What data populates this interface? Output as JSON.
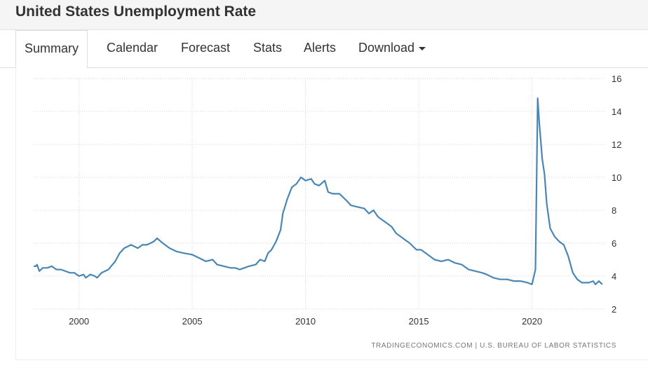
{
  "header": {
    "title": "United States Unemployment Rate"
  },
  "tabs": [
    {
      "label": "Summary",
      "active": true
    },
    {
      "label": "Calendar"
    },
    {
      "label": "Forecast"
    },
    {
      "label": "Stats"
    },
    {
      "label": "Alerts"
    },
    {
      "label": "Download",
      "dropdown": true
    }
  ],
  "source_text": "TRADINGECONOMICS.COM  |  U.S. BUREAU OF LABOR STATISTICS",
  "colors": {
    "line": "#4a86b4",
    "grid": "#d6d6d6",
    "axis_text": "#333333"
  },
  "chart_data": {
    "type": "line",
    "title": "",
    "xlabel": "",
    "ylabel": "",
    "xlim": [
      1998.0,
      2023.2
    ],
    "ylim": [
      2,
      16
    ],
    "x_ticks": [
      "2000",
      "2005",
      "2010",
      "2015",
      "2020"
    ],
    "y_ticks": [
      "2",
      "4",
      "6",
      "8",
      "10",
      "12",
      "14",
      "16"
    ],
    "grid": true,
    "y_axis_position": "right",
    "series": [
      {
        "points": [
          [
            1998.0,
            4.6
          ],
          [
            1998.1,
            4.6
          ],
          [
            1998.15,
            4.7
          ],
          [
            1998.25,
            4.3
          ],
          [
            1998.4,
            4.5
          ],
          [
            1998.6,
            4.5
          ],
          [
            1998.8,
            4.6
          ],
          [
            1999.0,
            4.4
          ],
          [
            1999.2,
            4.4
          ],
          [
            1999.4,
            4.3
          ],
          [
            1999.6,
            4.2
          ],
          [
            1999.8,
            4.2
          ],
          [
            2000.0,
            4.0
          ],
          [
            2000.2,
            4.1
          ],
          [
            2000.3,
            3.9
          ],
          [
            2000.5,
            4.1
          ],
          [
            2000.7,
            4.0
          ],
          [
            2000.8,
            3.9
          ],
          [
            2001.0,
            4.2
          ],
          [
            2001.3,
            4.4
          ],
          [
            2001.6,
            4.9
          ],
          [
            2001.8,
            5.4
          ],
          [
            2002.0,
            5.7
          ],
          [
            2002.3,
            5.9
          ],
          [
            2002.6,
            5.7
          ],
          [
            2002.8,
            5.9
          ],
          [
            2003.0,
            5.9
          ],
          [
            2003.3,
            6.1
          ],
          [
            2003.45,
            6.3
          ],
          [
            2003.7,
            6.0
          ],
          [
            2004.0,
            5.7
          ],
          [
            2004.3,
            5.5
          ],
          [
            2004.6,
            5.4
          ],
          [
            2005.0,
            5.3
          ],
          [
            2005.3,
            5.1
          ],
          [
            2005.6,
            4.9
          ],
          [
            2005.9,
            5.0
          ],
          [
            2006.1,
            4.7
          ],
          [
            2006.4,
            4.6
          ],
          [
            2006.7,
            4.5
          ],
          [
            2006.9,
            4.5
          ],
          [
            2007.1,
            4.4
          ],
          [
            2007.3,
            4.5
          ],
          [
            2007.5,
            4.6
          ],
          [
            2007.8,
            4.7
          ],
          [
            2008.0,
            5.0
          ],
          [
            2008.2,
            4.9
          ],
          [
            2008.35,
            5.4
          ],
          [
            2008.5,
            5.6
          ],
          [
            2008.7,
            6.1
          ],
          [
            2008.9,
            6.8
          ],
          [
            2009.0,
            7.8
          ],
          [
            2009.2,
            8.7
          ],
          [
            2009.4,
            9.4
          ],
          [
            2009.6,
            9.6
          ],
          [
            2009.8,
            10.0
          ],
          [
            2010.0,
            9.8
          ],
          [
            2010.25,
            9.9
          ],
          [
            2010.4,
            9.6
          ],
          [
            2010.6,
            9.5
          ],
          [
            2010.85,
            9.8
          ],
          [
            2011.0,
            9.1
          ],
          [
            2011.2,
            9.0
          ],
          [
            2011.5,
            9.0
          ],
          [
            2011.8,
            8.6
          ],
          [
            2012.0,
            8.3
          ],
          [
            2012.3,
            8.2
          ],
          [
            2012.6,
            8.1
          ],
          [
            2012.8,
            7.8
          ],
          [
            2013.0,
            8.0
          ],
          [
            2013.2,
            7.6
          ],
          [
            2013.5,
            7.3
          ],
          [
            2013.8,
            7.0
          ],
          [
            2014.0,
            6.6
          ],
          [
            2014.3,
            6.3
          ],
          [
            2014.6,
            6.0
          ],
          [
            2014.9,
            5.6
          ],
          [
            2015.1,
            5.6
          ],
          [
            2015.4,
            5.3
          ],
          [
            2015.7,
            5.0
          ],
          [
            2016.0,
            4.9
          ],
          [
            2016.3,
            5.0
          ],
          [
            2016.6,
            4.8
          ],
          [
            2016.9,
            4.7
          ],
          [
            2017.2,
            4.4
          ],
          [
            2017.5,
            4.3
          ],
          [
            2017.8,
            4.2
          ],
          [
            2018.0,
            4.1
          ],
          [
            2018.3,
            3.9
          ],
          [
            2018.6,
            3.8
          ],
          [
            2018.9,
            3.8
          ],
          [
            2019.2,
            3.7
          ],
          [
            2019.5,
            3.7
          ],
          [
            2019.8,
            3.6
          ],
          [
            2020.0,
            3.5
          ],
          [
            2020.15,
            4.4
          ],
          [
            2020.25,
            14.8
          ],
          [
            2020.32,
            13.3
          ],
          [
            2020.45,
            11.1
          ],
          [
            2020.55,
            10.2
          ],
          [
            2020.65,
            8.4
          ],
          [
            2020.8,
            6.9
          ],
          [
            2021.0,
            6.4
          ],
          [
            2021.2,
            6.1
          ],
          [
            2021.4,
            5.9
          ],
          [
            2021.6,
            5.2
          ],
          [
            2021.8,
            4.2
          ],
          [
            2022.0,
            3.8
          ],
          [
            2022.2,
            3.6
          ],
          [
            2022.5,
            3.6
          ],
          [
            2022.7,
            3.7
          ],
          [
            2022.8,
            3.5
          ],
          [
            2022.95,
            3.7
          ],
          [
            2023.1,
            3.5
          ]
        ]
      }
    ]
  }
}
